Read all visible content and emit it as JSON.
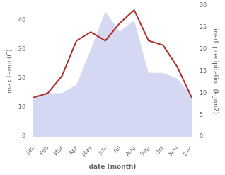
{
  "chart_data": {
    "type": "line",
    "categories": [
      "Jan",
      "Feb",
      "Mar",
      "Apr",
      "May",
      "Jun",
      "Jul",
      "Aug",
      "Sep",
      "Oct",
      "Nov",
      "Dec"
    ],
    "xlabel": "date (month)",
    "ylabel": "max temp (C)",
    "y2label": "med. precipitation (kg/m2)",
    "series": [
      {
        "type": "area",
        "color": "#b0b8e8",
        "values": [
          13,
          15,
          15,
          18,
          30,
          43,
          36,
          40,
          22,
          22,
          20,
          14
        ]
      },
      {
        "type": "line",
        "color": "#b03030",
        "axis": "y2",
        "values": [
          9,
          10,
          14,
          22,
          24,
          22,
          26,
          29,
          22,
          21,
          16,
          9
        ]
      }
    ],
    "ylim": [
      0,
      45
    ],
    "yticks": [
      0,
      10,
      20,
      30,
      40
    ],
    "y2lim": [
      0,
      30
    ],
    "y2ticks": [
      0,
      5,
      10,
      15,
      20,
      25,
      30
    ],
    "grid": false
  }
}
